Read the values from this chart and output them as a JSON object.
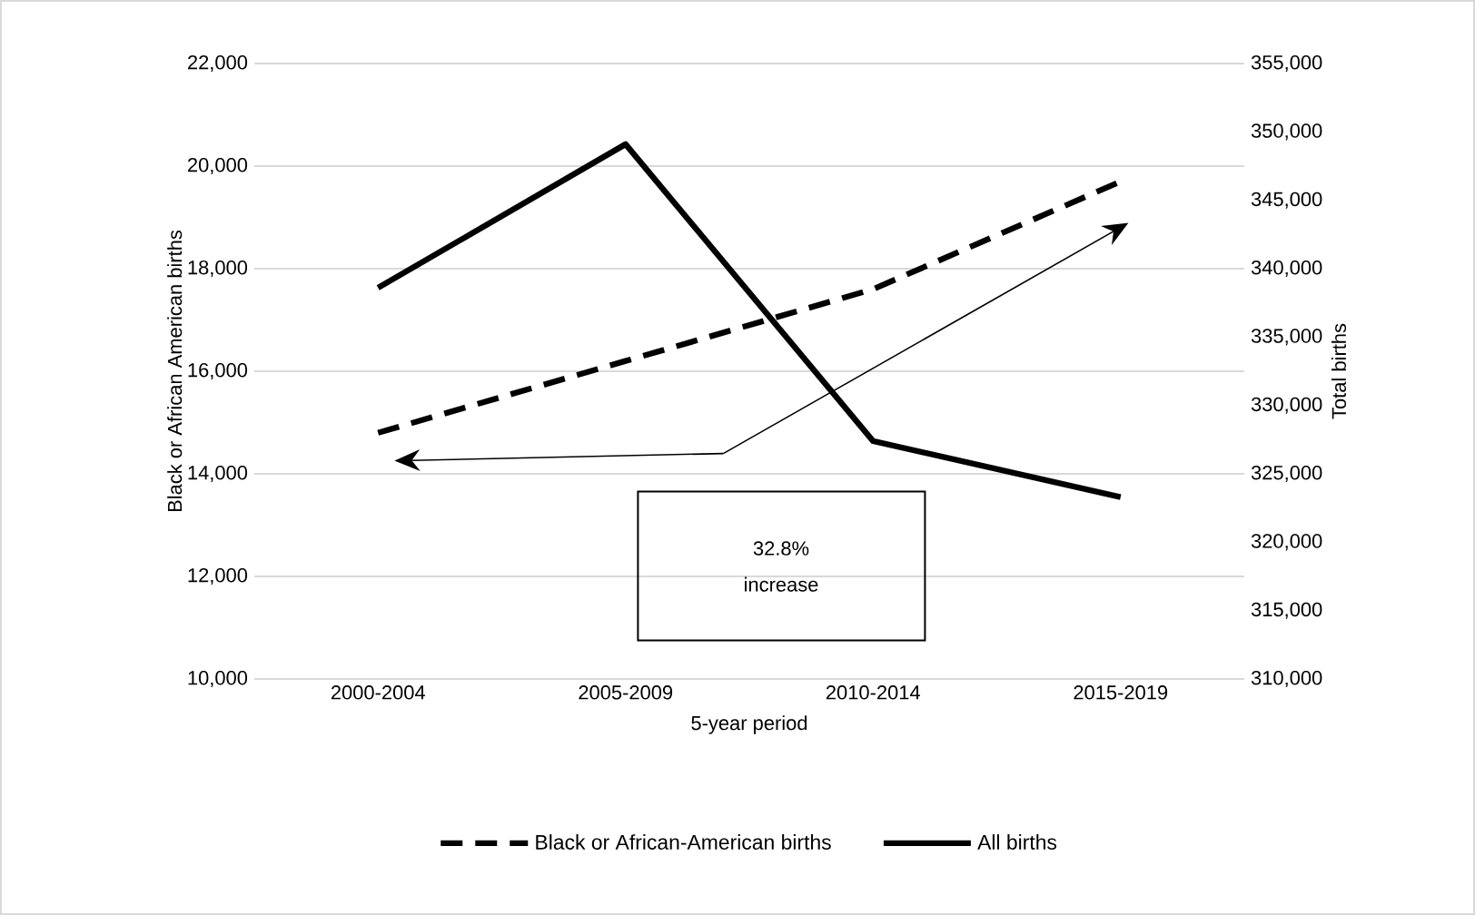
{
  "chart_data": {
    "type": "line",
    "xlabel": "5-year period",
    "ylabel": "Black or African American births",
    "y2label": "Total births",
    "categories": [
      "2000-2004",
      "2005-2009",
      "2010-2014",
      "2015-2019"
    ],
    "series": [
      {
        "name": "Black or African-American births",
        "color": "#000000",
        "line_style": "dashed",
        "values": [
          14800,
          16200,
          17600,
          19700
        ]
      },
      {
        "name": "All births",
        "color": "#000000",
        "line_style": "solid",
        "axis": "y2",
        "values": [
          338600,
          349100,
          327400,
          323300
        ]
      }
    ],
    "ylim": [
      10000,
      22000
    ],
    "yticks": [
      {
        "value": 10000,
        "label": "10,000"
      },
      {
        "value": 12000,
        "label": "12,000"
      },
      {
        "value": 14000,
        "label": "14,000"
      },
      {
        "value": 16000,
        "label": "16,000"
      },
      {
        "value": 18000,
        "label": "18,000"
      },
      {
        "value": 20000,
        "label": "20,000"
      },
      {
        "value": 22000,
        "label": "22,000"
      }
    ],
    "y2lim": [
      310000,
      355000
    ],
    "y2ticks": [
      {
        "value": 310000,
        "label": "310,000"
      },
      {
        "value": 315000,
        "label": "315,000"
      },
      {
        "value": 320000,
        "label": "320,000"
      },
      {
        "value": 325000,
        "label": "325,000"
      },
      {
        "value": 330000,
        "label": "330,000"
      },
      {
        "value": 335000,
        "label": "335,000"
      },
      {
        "value": 340000,
        "label": "340,000"
      },
      {
        "value": 345000,
        "label": "345,000"
      },
      {
        "value": 350000,
        "label": "350,000"
      },
      {
        "value": 355000,
        "label": "355,000"
      }
    ],
    "grid": "y",
    "legend": "bottom",
    "marker": "none",
    "annotations": [
      "32.8% increase"
    ]
  }
}
